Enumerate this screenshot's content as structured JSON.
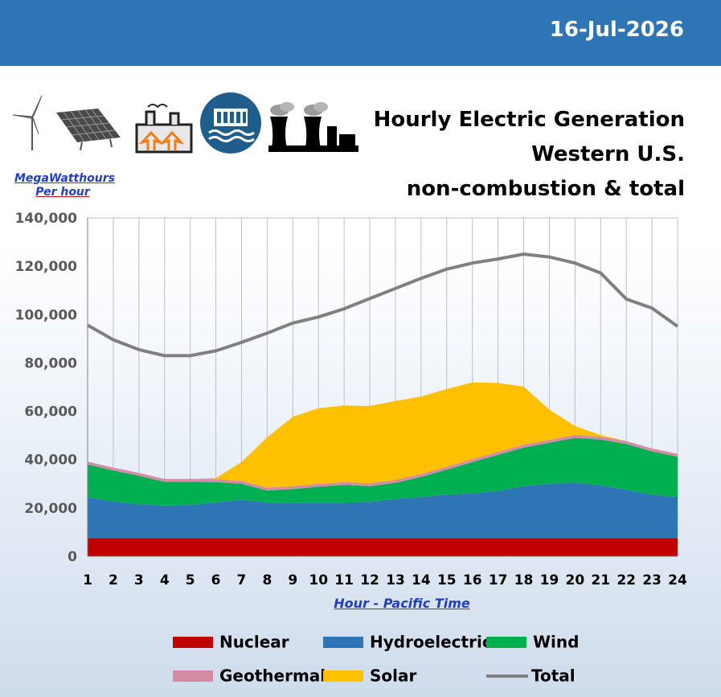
{
  "header": {
    "date": "16-Jul-2026"
  },
  "title_lines": [
    "Hourly Electric Generation",
    "Western U.S.",
    "non-combustion & total"
  ],
  "icons": [
    "wind-turbine-icon",
    "solar-panel-icon",
    "geothermal-plant-icon",
    "hydroelectric-dam-icon",
    "nuclear-plant-icon"
  ],
  "chart_data": {
    "type": "area",
    "ylabel_lines": [
      "MegaWatthours",
      "Per hour"
    ],
    "xlabel": "Hour - Pacific Time",
    "x": [
      1,
      2,
      3,
      4,
      5,
      6,
      7,
      8,
      9,
      10,
      11,
      12,
      13,
      14,
      15,
      16,
      17,
      18,
      19,
      20,
      21,
      22,
      23,
      24
    ],
    "ylim": [
      0,
      140000
    ],
    "yticks": [
      0,
      20000,
      40000,
      60000,
      80000,
      100000,
      120000,
      140000
    ],
    "ytick_labels": [
      "0",
      "20,000",
      "40,000",
      "60,000",
      "80,000",
      "100,000",
      "120,000",
      "140,000"
    ],
    "grid": "vertical lines",
    "legend_position": "bottom",
    "stacked_series": [
      {
        "name": "Nuclear",
        "color": "#c00000",
        "values": [
          7500,
          7500,
          7500,
          7500,
          7500,
          7500,
          7500,
          7500,
          7500,
          7500,
          7500,
          7500,
          7500,
          7500,
          7500,
          7500,
          7500,
          7500,
          7500,
          7500,
          7500,
          7500,
          7500,
          7500
        ]
      },
      {
        "name": "Hydroelectric",
        "color": "#2e75b6",
        "values": [
          16800,
          15200,
          14000,
          13500,
          13700,
          14800,
          15900,
          14700,
          14700,
          14700,
          14700,
          15000,
          16200,
          17000,
          18000,
          18500,
          19500,
          21500,
          22500,
          23000,
          21800,
          20000,
          18000,
          17000
        ]
      },
      {
        "name": "Wind",
        "color": "#00b050",
        "values": [
          13700,
          12800,
          11800,
          9800,
          9600,
          8400,
          6600,
          5000,
          5600,
          6600,
          7300,
          6500,
          6700,
          8400,
          10300,
          13000,
          15000,
          16000,
          17000,
          18500,
          19000,
          19000,
          17900,
          16700
        ]
      },
      {
        "name": "Geothermal",
        "color": "#d38ba6",
        "values": [
          1200,
          1200,
          1200,
          1200,
          1200,
          1200,
          1200,
          1200,
          1200,
          1200,
          1200,
          1200,
          1200,
          1200,
          1200,
          1200,
          1200,
          1200,
          1200,
          1200,
          1200,
          1200,
          1200,
          1200
        ]
      },
      {
        "name": "Solar",
        "color": "#ffc000",
        "values": [
          0,
          0,
          0,
          0,
          0,
          500,
          7800,
          20800,
          28700,
          31300,
          31700,
          32000,
          32600,
          32000,
          32200,
          31700,
          28500,
          24000,
          12500,
          3700,
          600,
          0,
          0,
          0
        ]
      }
    ],
    "line_series": [
      {
        "name": "Total",
        "color": "#808080",
        "values": [
          95600,
          89600,
          85500,
          83000,
          83000,
          85000,
          88500,
          92300,
          96500,
          99000,
          102400,
          106600,
          110800,
          115000,
          118800,
          121300,
          123000,
          125000,
          123800,
          121300,
          117200,
          106400,
          102700,
          95100
        ]
      }
    ]
  },
  "legend": [
    {
      "name": "Nuclear",
      "color": "#c00000",
      "kind": "area"
    },
    {
      "name": "Hydroelectric",
      "color": "#2e75b6",
      "kind": "area"
    },
    {
      "name": "Wind",
      "color": "#00b050",
      "kind": "area"
    },
    {
      "name": "Geothermal",
      "color": "#d38ba6",
      "kind": "area"
    },
    {
      "name": "Solar",
      "color": "#ffc000",
      "kind": "area"
    },
    {
      "name": "Total",
      "color": "#808080",
      "kind": "line"
    }
  ]
}
